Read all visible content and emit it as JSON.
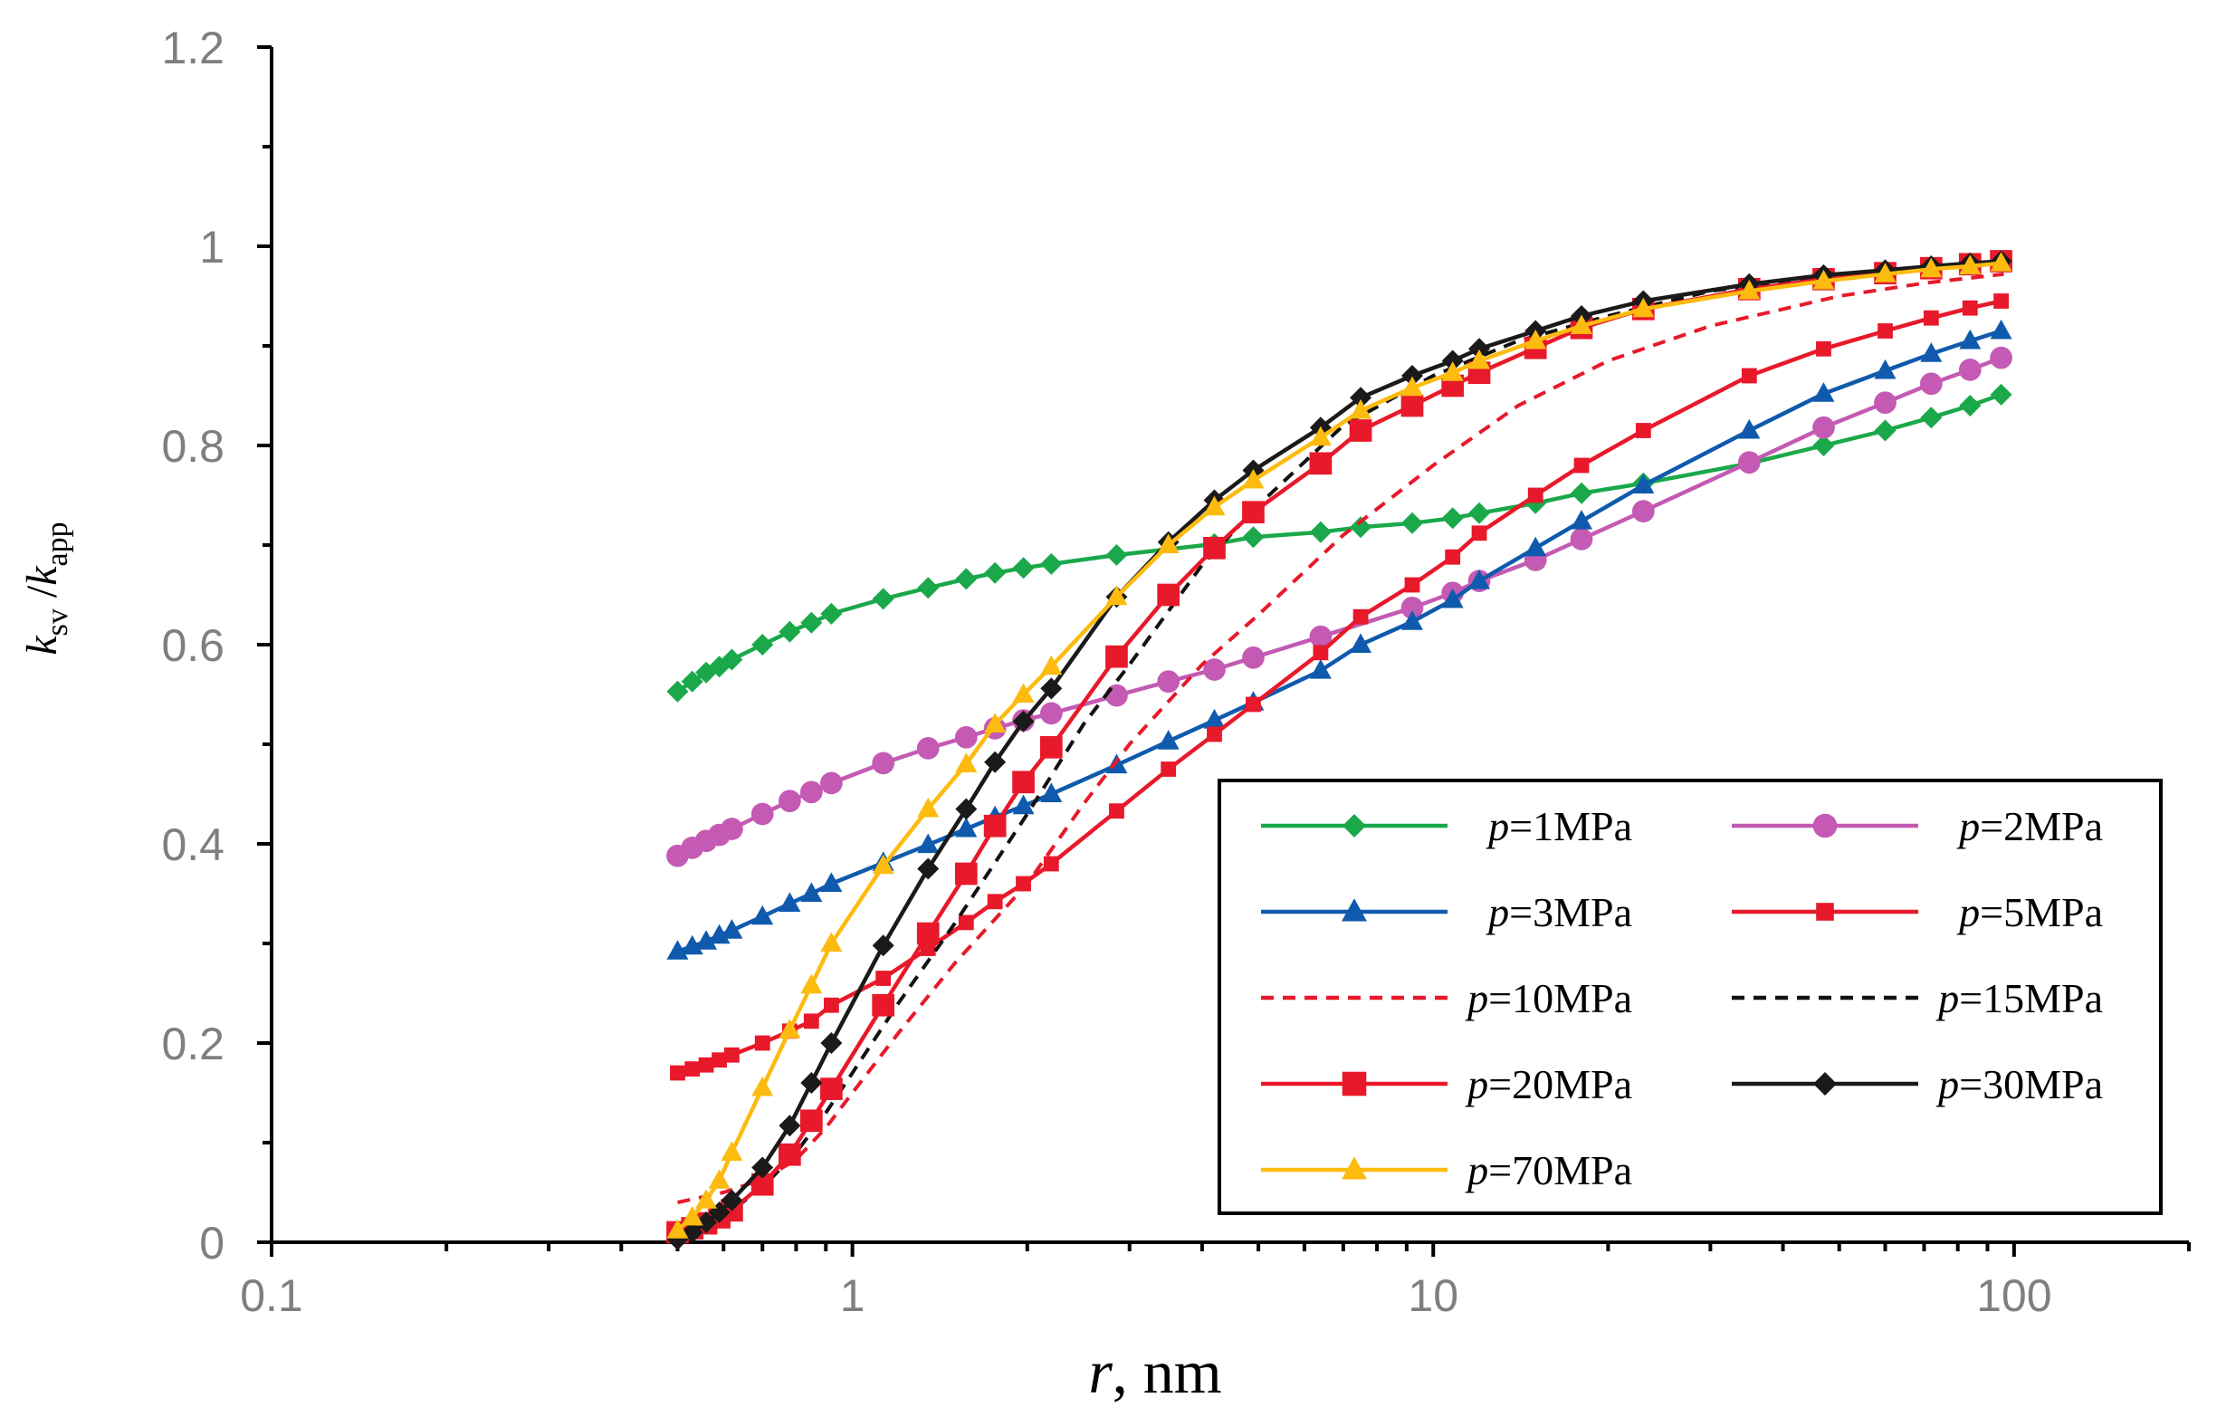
{
  "chart_data": {
    "type": "line",
    "title": "",
    "xlabel": {
      "var": "r",
      "unit": ", nm"
    },
    "ylabel": {
      "k1": "k",
      "sub1": "sv",
      "sep": " /",
      "k2": "k",
      "sub2": "app"
    },
    "x_scale": "log",
    "xlim": [
      0.1,
      200
    ],
    "ylim": [
      0,
      1.2
    ],
    "x_ticks": [
      0.1,
      1,
      10,
      100
    ],
    "x_tick_labels": [
      "0.1",
      "1",
      "10",
      "100"
    ],
    "y_ticks": [
      0,
      0.2,
      0.4,
      0.6,
      0.8,
      1,
      1.2
    ],
    "y_tick_labels": [
      "0",
      "0.2",
      "0.4",
      "0.6",
      "0.8",
      "1",
      "1.2"
    ],
    "grid": false,
    "legend_position": "bottom-right",
    "series": [
      {
        "name": "p=1MPa",
        "label_var": "p",
        "label_rest": "=1MPa",
        "color": "#1aa84a",
        "marker": "diamond",
        "dash": false,
        "x": [
          0.5,
          0.53,
          0.56,
          0.59,
          0.62,
          0.7,
          0.78,
          0.85,
          0.92,
          1.13,
          1.35,
          1.57,
          1.76,
          1.97,
          2.2,
          2.85,
          4.2,
          4.9,
          6.4,
          7.5,
          9.2,
          10.8,
          12.0,
          15.0,
          18.0,
          23.0,
          35.0,
          47.0,
          60.0,
          72.0,
          84.0,
          95.0
        ],
        "y": [
          0.553,
          0.563,
          0.572,
          0.578,
          0.585,
          0.6,
          0.613,
          0.622,
          0.631,
          0.646,
          0.657,
          0.666,
          0.672,
          0.677,
          0.681,
          0.69,
          0.701,
          0.708,
          0.713,
          0.718,
          0.722,
          0.727,
          0.732,
          0.742,
          0.752,
          0.762,
          0.782,
          0.8,
          0.815,
          0.828,
          0.84,
          0.851
        ]
      },
      {
        "name": "p=2MPa",
        "label_var": "p",
        "label_rest": "=2MPa",
        "color": "#c45ab3",
        "marker": "circle",
        "dash": false,
        "x": [
          0.5,
          0.53,
          0.56,
          0.59,
          0.62,
          0.7,
          0.78,
          0.85,
          0.92,
          1.13,
          1.35,
          1.57,
          1.76,
          1.97,
          2.2,
          2.85,
          3.5,
          4.2,
          4.9,
          6.4,
          9.2,
          10.8,
          12.0,
          15.0,
          18.0,
          23.0,
          35.0,
          47.0,
          60.0,
          72.0,
          84.0,
          95.0
        ],
        "y": [
          0.388,
          0.396,
          0.403,
          0.409,
          0.415,
          0.43,
          0.443,
          0.452,
          0.461,
          0.481,
          0.496,
          0.507,
          0.516,
          0.524,
          0.531,
          0.549,
          0.563,
          0.575,
          0.587,
          0.608,
          0.637,
          0.652,
          0.664,
          0.685,
          0.706,
          0.734,
          0.783,
          0.818,
          0.843,
          0.862,
          0.876,
          0.888
        ]
      },
      {
        "name": "p=3MPa",
        "label_var": "p",
        "label_rest": "=3MPa",
        "color": "#0f5aad",
        "marker": "triangle",
        "dash": false,
        "x": [
          0.5,
          0.53,
          0.56,
          0.59,
          0.62,
          0.7,
          0.78,
          0.85,
          0.92,
          1.13,
          1.35,
          1.57,
          1.76,
          1.97,
          2.2,
          2.85,
          3.5,
          4.2,
          4.9,
          6.4,
          7.5,
          9.2,
          10.8,
          12.0,
          15.0,
          18.0,
          23.0,
          35.0,
          47.0,
          60.0,
          72.0,
          84.0,
          95.0
        ],
        "y": [
          0.292,
          0.297,
          0.302,
          0.308,
          0.313,
          0.327,
          0.34,
          0.35,
          0.36,
          0.381,
          0.399,
          0.415,
          0.427,
          0.438,
          0.45,
          0.479,
          0.503,
          0.524,
          0.542,
          0.574,
          0.6,
          0.623,
          0.645,
          0.664,
          0.697,
          0.724,
          0.76,
          0.815,
          0.852,
          0.875,
          0.892,
          0.905,
          0.915
        ]
      },
      {
        "name": "p=5MPa",
        "label_var": "p",
        "label_rest": "=5MPa",
        "color": "#e8192a",
        "marker": "smallsquare",
        "dash": false,
        "x": [
          0.5,
          0.53,
          0.56,
          0.59,
          0.62,
          0.7,
          0.78,
          0.85,
          0.92,
          1.13,
          1.35,
          1.57,
          1.76,
          1.97,
          2.2,
          2.85,
          3.5,
          4.2,
          4.9,
          6.4,
          7.5,
          9.2,
          10.8,
          12.0,
          15.0,
          18.0,
          23.0,
          35.0,
          47.0,
          60.0,
          72.0,
          84.0,
          95.0
        ],
        "y": [
          0.17,
          0.174,
          0.178,
          0.183,
          0.188,
          0.2,
          0.212,
          0.222,
          0.238,
          0.265,
          0.295,
          0.321,
          0.342,
          0.36,
          0.38,
          0.433,
          0.475,
          0.51,
          0.54,
          0.592,
          0.628,
          0.66,
          0.688,
          0.712,
          0.75,
          0.78,
          0.815,
          0.87,
          0.897,
          0.915,
          0.928,
          0.938,
          0.945
        ]
      },
      {
        "name": "p=10MPa",
        "label_var": "p",
        "label_rest": "=10MPa",
        "color": "#e8192a",
        "marker": "none",
        "dash": true,
        "x": [
          0.5,
          0.6,
          0.7,
          0.8,
          0.9,
          1.0,
          1.2,
          1.5,
          2.0,
          2.5,
          3.0,
          4.0,
          5.0,
          7.0,
          10.0,
          14.0,
          20.0,
          30.0,
          50.0,
          70.0,
          96.0
        ],
        "y": [
          0.04,
          0.05,
          0.063,
          0.083,
          0.115,
          0.15,
          0.21,
          0.28,
          0.36,
          0.44,
          0.5,
          0.58,
          0.63,
          0.71,
          0.78,
          0.84,
          0.885,
          0.92,
          0.95,
          0.963,
          0.972
        ]
      },
      {
        "name": "p=15MPa",
        "label_var": "p",
        "label_rest": "=15MPa",
        "color": "#111111",
        "marker": "none",
        "dash": true,
        "x": [
          0.5,
          0.6,
          0.7,
          0.8,
          0.9,
          1.0,
          1.2,
          1.5,
          2.0,
          2.5,
          3.0,
          4.0,
          5.0,
          7.0,
          10.0,
          14.0,
          20.0,
          30.0,
          50.0,
          70.0,
          96.0
        ],
        "y": [
          0.008,
          0.026,
          0.055,
          0.09,
          0.13,
          0.17,
          0.24,
          0.32,
          0.43,
          0.52,
          0.58,
          0.68,
          0.74,
          0.82,
          0.87,
          0.905,
          0.93,
          0.955,
          0.972,
          0.978,
          0.983
        ]
      },
      {
        "name": "p=20MPa",
        "label_var": "p",
        "label_rest": "=20MPa",
        "color": "#e8192a",
        "marker": "square",
        "dash": false,
        "x": [
          0.5,
          0.53,
          0.56,
          0.59,
          0.62,
          0.7,
          0.78,
          0.85,
          0.92,
          1.13,
          1.35,
          1.57,
          1.76,
          1.97,
          2.2,
          2.85,
          3.5,
          4.2,
          4.9,
          6.4,
          7.5,
          9.2,
          10.8,
          12.0,
          15.0,
          18.0,
          23.0,
          35.0,
          47.0,
          60.0,
          72.0,
          84.0,
          95.0
        ],
        "y": [
          0.01,
          0.014,
          0.019,
          0.025,
          0.032,
          0.058,
          0.088,
          0.122,
          0.154,
          0.238,
          0.31,
          0.37,
          0.418,
          0.462,
          0.497,
          0.588,
          0.65,
          0.697,
          0.733,
          0.782,
          0.815,
          0.84,
          0.86,
          0.873,
          0.898,
          0.918,
          0.937,
          0.957,
          0.967,
          0.973,
          0.978,
          0.982,
          0.985
        ]
      },
      {
        "name": "p=30MPa",
        "label_var": "p",
        "label_rest": "=30MPa",
        "color": "#1a1a1a",
        "marker": "diamond",
        "dash": false,
        "x": [
          0.5,
          0.53,
          0.56,
          0.59,
          0.62,
          0.7,
          0.78,
          0.85,
          0.92,
          1.13,
          1.35,
          1.57,
          1.76,
          1.97,
          2.2,
          2.85,
          3.5,
          4.2,
          4.9,
          6.4,
          7.5,
          9.2,
          10.8,
          12.0,
          15.0,
          18.0,
          23.0,
          35.0,
          47.0,
          60.0,
          72.0,
          84.0,
          95.0
        ],
        "y": [
          0.003,
          0.01,
          0.02,
          0.03,
          0.042,
          0.075,
          0.117,
          0.16,
          0.2,
          0.298,
          0.375,
          0.435,
          0.482,
          0.523,
          0.556,
          0.648,
          0.703,
          0.745,
          0.775,
          0.818,
          0.848,
          0.87,
          0.885,
          0.897,
          0.915,
          0.93,
          0.945,
          0.962,
          0.971,
          0.976,
          0.98,
          0.983,
          0.985
        ]
      },
      {
        "name": "p=70MPa",
        "label_var": "p",
        "label_rest": "=70MPa",
        "color": "#fdbb10",
        "marker": "triangle",
        "dash": false,
        "x": [
          0.5,
          0.53,
          0.56,
          0.59,
          0.62,
          0.7,
          0.78,
          0.85,
          0.92,
          1.13,
          1.35,
          1.57,
          1.76,
          1.97,
          2.2,
          2.85,
          3.5,
          4.2,
          4.9,
          6.4,
          7.5,
          9.2,
          10.8,
          12.0,
          15.0,
          18.0,
          23.0,
          35.0,
          47.0,
          60.0,
          72.0,
          84.0,
          95.0
        ],
        "y": [
          0.012,
          0.025,
          0.042,
          0.062,
          0.09,
          0.155,
          0.213,
          0.258,
          0.3,
          0.378,
          0.435,
          0.48,
          0.52,
          0.55,
          0.578,
          0.648,
          0.7,
          0.738,
          0.765,
          0.808,
          0.835,
          0.858,
          0.873,
          0.885,
          0.905,
          0.92,
          0.937,
          0.955,
          0.965,
          0.972,
          0.977,
          0.98,
          0.983
        ]
      }
    ]
  }
}
